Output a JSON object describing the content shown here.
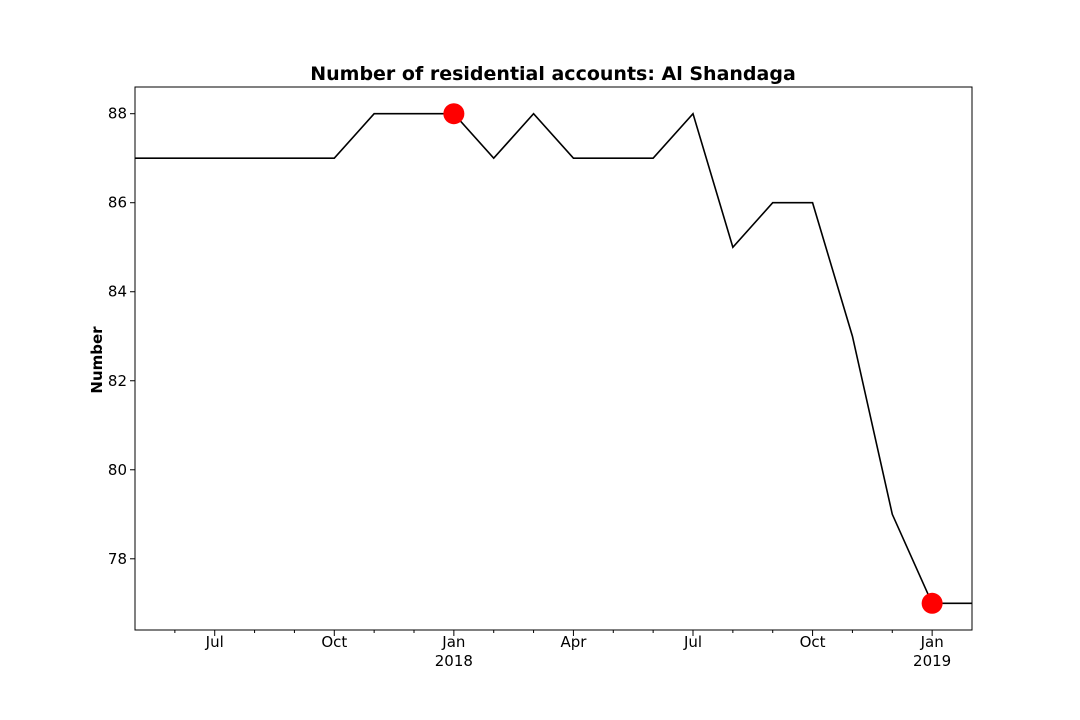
{
  "chart_data": {
    "type": "line",
    "title": "Number of residential accounts: Al Shandaga",
    "xlabel": "",
    "ylabel": "Number",
    "x_range": [
      "2017-05",
      "2019-02"
    ],
    "y_range": [
      76.4,
      88.6
    ],
    "grid": false,
    "y_ticks": [
      78,
      80,
      82,
      84,
      86,
      88
    ],
    "x_ticks": [
      {
        "date": "2017-07",
        "label": "Jul",
        "sublabel": ""
      },
      {
        "date": "2017-10",
        "label": "Oct",
        "sublabel": ""
      },
      {
        "date": "2018-01",
        "label": "Jan",
        "sublabel": "2018"
      },
      {
        "date": "2018-04",
        "label": "Apr",
        "sublabel": ""
      },
      {
        "date": "2018-07",
        "label": "Jul",
        "sublabel": ""
      },
      {
        "date": "2018-10",
        "label": "Oct",
        "sublabel": ""
      },
      {
        "date": "2019-01",
        "label": "Jan",
        "sublabel": "2019"
      }
    ],
    "minor_tick_dates": [
      "2017-06",
      "2017-08",
      "2017-09",
      "2017-11",
      "2017-12",
      "2018-02",
      "2018-03",
      "2018-05",
      "2018-06",
      "2018-08",
      "2018-09",
      "2018-11",
      "2018-12"
    ],
    "series": [
      {
        "color": "#000000",
        "points": [
          {
            "date": "2017-05",
            "value": 87
          },
          {
            "date": "2017-06",
            "value": 87
          },
          {
            "date": "2017-07",
            "value": 87
          },
          {
            "date": "2017-08",
            "value": 87
          },
          {
            "date": "2017-09",
            "value": 87
          },
          {
            "date": "2017-10",
            "value": 87
          },
          {
            "date": "2017-11",
            "value": 88
          },
          {
            "date": "2017-12",
            "value": 88
          },
          {
            "date": "2018-01",
            "value": 88
          },
          {
            "date": "2018-02",
            "value": 87
          },
          {
            "date": "2018-03",
            "value": 88
          },
          {
            "date": "2018-04",
            "value": 87
          },
          {
            "date": "2018-05",
            "value": 87
          },
          {
            "date": "2018-06",
            "value": 87
          },
          {
            "date": "2018-07",
            "value": 88
          },
          {
            "date": "2018-08",
            "value": 85
          },
          {
            "date": "2018-09",
            "value": 86
          },
          {
            "date": "2018-10",
            "value": 86
          },
          {
            "date": "2018-11",
            "value": 83
          },
          {
            "date": "2018-12",
            "value": 79
          },
          {
            "date": "2019-01",
            "value": 77
          },
          {
            "date": "2019-02",
            "value": 77
          }
        ]
      }
    ],
    "markers": {
      "color": "#ff0000",
      "points": [
        {
          "date": "2018-01",
          "value": 88
        },
        {
          "date": "2019-01",
          "value": 77
        }
      ]
    }
  }
}
